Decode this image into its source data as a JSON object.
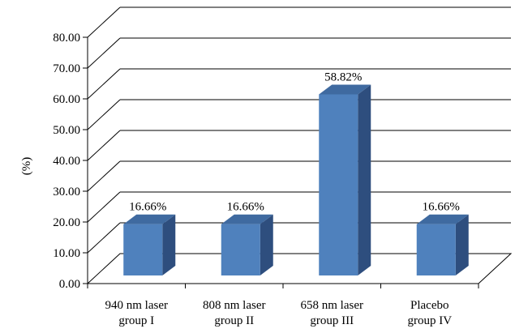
{
  "chart_data": {
    "type": "bar",
    "style": "3d-column",
    "categories": [
      [
        "940 nm laser",
        "group I"
      ],
      [
        "808 nm laser",
        "group II"
      ],
      [
        "658 nm laser",
        "group III"
      ],
      [
        "Placebo",
        "group IV"
      ]
    ],
    "values": [
      16.66,
      16.66,
      58.82,
      16.66
    ],
    "data_labels": [
      "16.66%",
      "16.66%",
      "58.82%",
      "16.66%"
    ],
    "ylabel": "(%)",
    "xlabel": "",
    "title": "",
    "ylim": [
      0,
      80
    ],
    "yticks": [
      "0.00",
      "10.00",
      "20.00",
      "30.00",
      "40.00",
      "50.00",
      "60.00",
      "70.00",
      "80.00"
    ],
    "grid": true,
    "legend": "none",
    "colors": {
      "bar_front": "#4F81BD",
      "bar_side": "#2E4E7E",
      "bar_top": "#3F6AA0",
      "axis": "#000000",
      "grid": "#000000"
    }
  }
}
